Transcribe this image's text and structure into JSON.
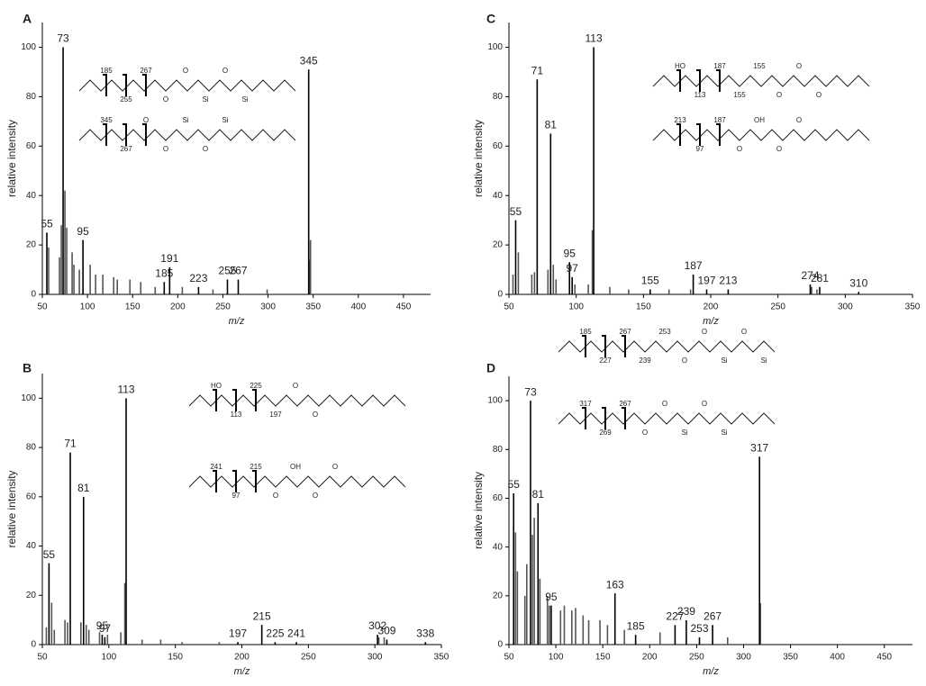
{
  "chart_data": [
    {
      "type": "stem",
      "panel": "A",
      "xlabel": "m/z",
      "ylabel": "relative intensity",
      "xlim": [
        50,
        480
      ],
      "ylim": [
        0,
        110
      ],
      "xticks": [
        50,
        100,
        150,
        200,
        250,
        300,
        350,
        400,
        450
      ],
      "yticks": [
        0,
        20,
        40,
        60,
        80,
        100
      ],
      "color": "#000000",
      "minor_color": "#555555",
      "x": [
        55,
        73,
        95,
        185,
        191,
        223,
        255,
        267,
        345
      ],
      "values": [
        25,
        100,
        22,
        5,
        11,
        3,
        6,
        6,
        91
      ],
      "minor_x": [
        57,
        69,
        71,
        75,
        77,
        83,
        85,
        91,
        103,
        109,
        117,
        129,
        133,
        147,
        159,
        175,
        205,
        239,
        299,
        346,
        347
      ],
      "minor_values": [
        19,
        15,
        28,
        42,
        27,
        17,
        12,
        10,
        12,
        8,
        8,
        7,
        6,
        6,
        5,
        3,
        3,
        2,
        2,
        14,
        22
      ],
      "structures": [
        {
          "labels": [
            "185",
            "255",
            "267",
            "O",
            "O",
            "Si",
            "O",
            "Si"
          ]
        },
        {
          "labels": [
            "345",
            "267",
            "O",
            "O",
            "Si",
            "O",
            "Si"
          ]
        }
      ]
    },
    {
      "type": "stem",
      "panel": "B",
      "xlabel": "m/z",
      "ylabel": "relative intensity",
      "xlim": [
        50,
        350
      ],
      "ylim": [
        0,
        110
      ],
      "xticks": [
        50,
        100,
        150,
        200,
        250,
        300,
        350
      ],
      "yticks": [
        0,
        20,
        40,
        60,
        80,
        100
      ],
      "color": "#000000",
      "minor_color": "#555555",
      "x": [
        55,
        71,
        81,
        95,
        97,
        113,
        197,
        215,
        225,
        241,
        302,
        309,
        338
      ],
      "values": [
        33,
        78,
        60,
        4,
        3,
        100,
        1,
        8,
        1,
        1,
        4,
        2,
        1
      ],
      "minor_x": [
        53,
        57,
        59,
        67,
        69,
        79,
        83,
        85,
        93,
        99,
        109,
        112,
        125,
        139,
        155,
        183,
        303,
        307
      ],
      "minor_values": [
        7,
        17,
        6,
        10,
        9,
        9,
        8,
        6,
        5,
        4,
        5,
        25,
        2,
        2,
        1,
        1,
        3,
        3
      ],
      "structures": [
        {
          "labels": [
            "HO",
            "113",
            "225",
            "197",
            "O",
            "O"
          ]
        },
        {
          "labels": [
            "241",
            "97",
            "215",
            "O",
            "OH",
            "O",
            "O"
          ]
        }
      ]
    },
    {
      "type": "stem",
      "panel": "C",
      "xlabel": "m/z",
      "ylabel": "relative intensity",
      "xlim": [
        50,
        350
      ],
      "ylim": [
        0,
        110
      ],
      "xticks": [
        50,
        100,
        150,
        200,
        250,
        300,
        350
      ],
      "yticks": [
        0,
        20,
        40,
        60,
        80,
        100
      ],
      "color": "#000000",
      "minor_color": "#555555",
      "x": [
        55,
        71,
        81,
        95,
        97,
        113,
        155,
        187,
        197,
        213,
        274,
        281,
        310
      ],
      "values": [
        30,
        87,
        65,
        13,
        7,
        100,
        2,
        8,
        2,
        2,
        4,
        3,
        1
      ],
      "minor_x": [
        53,
        57,
        67,
        69,
        79,
        83,
        85,
        99,
        109,
        112,
        125,
        139,
        169,
        185,
        275,
        279
      ],
      "minor_values": [
        8,
        17,
        8,
        9,
        10,
        12,
        6,
        4,
        4,
        26,
        3,
        2,
        2,
        2,
        3,
        2
      ],
      "structures": [
        {
          "labels": [
            "HO",
            "113",
            "187",
            "155",
            "155",
            "O",
            "O",
            "O"
          ]
        },
        {
          "labels": [
            "213",
            "97",
            "187",
            "O",
            "OH",
            "O",
            "O"
          ]
        }
      ]
    },
    {
      "type": "stem",
      "panel": "D",
      "xlabel": "m/z",
      "ylabel": "relative intensity",
      "xlim": [
        50,
        480
      ],
      "ylim": [
        0,
        110
      ],
      "xticks": [
        50,
        100,
        150,
        200,
        250,
        300,
        350,
        400,
        450
      ],
      "yticks": [
        0,
        20,
        40,
        60,
        80,
        100
      ],
      "color": "#000000",
      "minor_color": "#555555",
      "x": [
        55,
        73,
        81,
        95,
        163,
        185,
        227,
        239,
        253,
        267,
        317
      ],
      "values": [
        62,
        100,
        58,
        16,
        21,
        4,
        8,
        10,
        3,
        8,
        77
      ],
      "minor_x": [
        57,
        59,
        67,
        69,
        75,
        77,
        83,
        91,
        93,
        105,
        109,
        117,
        121,
        129,
        135,
        147,
        155,
        173,
        211,
        283,
        318
      ],
      "minor_values": [
        46,
        30,
        20,
        33,
        45,
        52,
        27,
        20,
        16,
        14,
        16,
        14,
        15,
        12,
        10,
        10,
        8,
        6,
        5,
        3,
        17
      ],
      "structures": [
        {
          "labels": [
            "185",
            "227",
            "267",
            "239",
            "253",
            "O",
            "O",
            "Si",
            "O",
            "Si"
          ]
        },
        {
          "labels": [
            "317",
            "269",
            "267",
            "O",
            "O",
            "Si",
            "O",
            "Si"
          ]
        }
      ]
    }
  ]
}
